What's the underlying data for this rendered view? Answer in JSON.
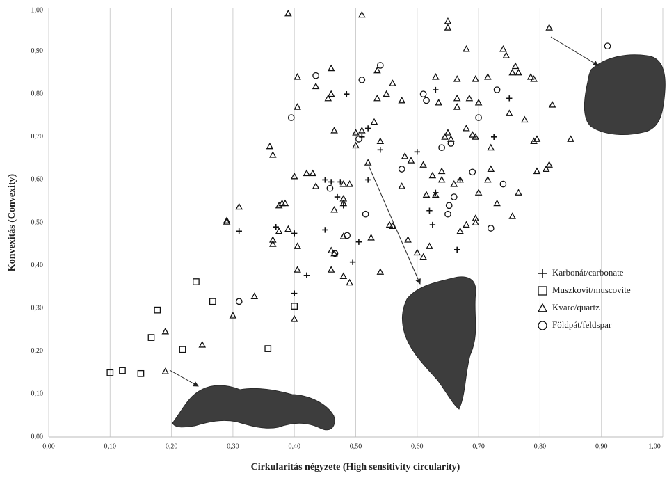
{
  "chart_data": {
    "type": "scatter",
    "xlabel": "Cirkularitás négyzete (High sensitivity circularity)",
    "ylabel": "Konvexitás (Convexity)",
    "xlim": [
      0,
      1
    ],
    "ylim": [
      0,
      1
    ],
    "xticks": [
      {
        "value": 0,
        "label": "0,00"
      },
      {
        "value": 0.1,
        "label": "0,10"
      },
      {
        "value": 0.2,
        "label": "0,20"
      },
      {
        "value": 0.3,
        "label": "0,30"
      },
      {
        "value": 0.4,
        "label": "0,40"
      },
      {
        "value": 0.5,
        "label": "0,50"
      },
      {
        "value": 0.6,
        "label": "0,60"
      },
      {
        "value": 0.7,
        "label": "0,70"
      },
      {
        "value": 0.8,
        "label": "0,80"
      },
      {
        "value": 0.9,
        "label": "0,90"
      },
      {
        "value": 1,
        "label": "1,00"
      }
    ],
    "yticks": [
      {
        "value": 0,
        "label": "0,00"
      },
      {
        "value": 0.1,
        "label": "0,10"
      },
      {
        "value": 0.2,
        "label": "0,20"
      },
      {
        "value": 0.3,
        "label": "0,30"
      },
      {
        "value": 0.4,
        "label": "0,40"
      },
      {
        "value": 0.5,
        "label": "0,50"
      },
      {
        "value": 0.6,
        "label": "0,60"
      },
      {
        "value": 0.7,
        "label": "0,70"
      },
      {
        "value": 0.8,
        "label": "0,80"
      },
      {
        "value": 0.9,
        "label": "0,90"
      },
      {
        "value": 1,
        "label": "1,00"
      }
    ],
    "grid": "x",
    "legend": "right",
    "series": [
      {
        "name": "Karbonát/carbonate",
        "color": "#111111",
        "marker": "plus",
        "x": [
          0.31,
          0.37,
          0.4,
          0.4,
          0.42,
          0.45,
          0.46,
          0.47,
          0.475,
          0.45,
          0.48,
          0.485,
          0.495,
          0.505,
          0.51,
          0.52,
          0.52,
          0.54,
          0.6,
          0.62,
          0.625,
          0.63,
          0.665,
          0.67,
          0.725,
          0.75,
          0.63
        ],
        "values": [
          0.48,
          0.49,
          0.335,
          0.475,
          0.377,
          0.6,
          0.595,
          0.56,
          0.595,
          0.483,
          0.54,
          0.8,
          0.408,
          0.455,
          0.7,
          0.72,
          0.6,
          0.67,
          0.665,
          0.528,
          0.495,
          0.81,
          0.437,
          0.6,
          0.7,
          0.79,
          0.57
        ]
      },
      {
        "name": "Muszkovit/muscovite",
        "color": "#111111",
        "marker": "square",
        "x": [
          0.1,
          0.12,
          0.15,
          0.167,
          0.177,
          0.218,
          0.24,
          0.267,
          0.357,
          0.4
        ],
        "values": [
          0.15,
          0.155,
          0.148,
          0.232,
          0.296,
          0.204,
          0.362,
          0.316,
          0.206,
          0.305
        ]
      },
      {
        "name": "Kvarc/quartz",
        "color": "#111111",
        "marker": "triangle",
        "x": [
          0.19,
          0.19,
          0.25,
          0.3,
          0.29,
          0.29,
          0.31,
          0.335,
          0.36,
          0.365,
          0.365,
          0.365,
          0.375,
          0.375,
          0.38,
          0.385,
          0.39,
          0.39,
          0.4,
          0.405,
          0.405,
          0.405,
          0.4,
          0.405,
          0.42,
          0.43,
          0.435,
          0.435,
          0.465,
          0.455,
          0.46,
          0.46,
          0.46,
          0.465,
          0.46,
          0.465,
          0.48,
          0.48,
          0.48,
          0.48,
          0.48,
          0.49,
          0.49,
          0.5,
          0.5,
          0.51,
          0.51,
          0.52,
          0.525,
          0.53,
          0.535,
          0.535,
          0.54,
          0.54,
          0.55,
          0.555,
          0.56,
          0.56,
          0.575,
          0.575,
          0.58,
          0.585,
          0.59,
          0.6,
          0.61,
          0.61,
          0.615,
          0.62,
          0.625,
          0.63,
          0.63,
          0.635,
          0.64,
          0.64,
          0.645,
          0.65,
          0.65,
          0.65,
          0.655,
          0.66,
          0.665,
          0.665,
          0.665,
          0.67,
          0.67,
          0.68,
          0.68,
          0.68,
          0.685,
          0.69,
          0.695,
          0.695,
          0.695,
          0.695,
          0.7,
          0.7,
          0.715,
          0.72,
          0.715,
          0.72,
          0.73,
          0.74,
          0.745,
          0.75,
          0.755,
          0.755,
          0.76,
          0.765,
          0.765,
          0.775,
          0.785,
          0.79,
          0.79,
          0.795,
          0.795,
          0.81,
          0.815,
          0.815,
          0.82,
          0.85
        ],
        "values": [
          0.153,
          0.246,
          0.215,
          0.283,
          0.505,
          0.502,
          0.537,
          0.328,
          0.678,
          0.658,
          0.46,
          0.45,
          0.48,
          0.54,
          0.545,
          0.545,
          0.485,
          0.988,
          0.608,
          0.84,
          0.77,
          0.39,
          0.275,
          0.445,
          0.615,
          0.615,
          0.585,
          0.818,
          0.715,
          0.79,
          0.86,
          0.8,
          0.435,
          0.428,
          0.39,
          0.53,
          0.59,
          0.545,
          0.556,
          0.375,
          0.468,
          0.36,
          0.59,
          0.68,
          0.71,
          0.715,
          0.985,
          0.64,
          0.465,
          0.735,
          0.855,
          0.79,
          0.385,
          0.69,
          0.8,
          0.495,
          0.492,
          0.825,
          0.585,
          0.785,
          0.655,
          0.46,
          0.645,
          0.43,
          0.42,
          0.635,
          0.565,
          0.445,
          0.61,
          0.84,
          0.565,
          0.78,
          0.62,
          0.6,
          0.7,
          0.71,
          0.97,
          0.955,
          0.695,
          0.59,
          0.835,
          0.77,
          0.79,
          0.48,
          0.6,
          0.495,
          0.72,
          0.905,
          0.79,
          0.705,
          0.835,
          0.51,
          0.5,
          0.7,
          0.57,
          0.78,
          0.6,
          0.625,
          0.84,
          0.675,
          0.545,
          0.905,
          0.89,
          0.755,
          0.515,
          0.85,
          0.865,
          0.85,
          0.57,
          0.74,
          0.84,
          0.835,
          0.69,
          0.62,
          0.695,
          0.625,
          0.635,
          0.955,
          0.775,
          0.695
        ]
      },
      {
        "name": "Földpát/feldspar",
        "color": "#111111",
        "marker": "circle",
        "x": [
          0.31,
          0.395,
          0.435,
          0.458,
          0.466,
          0.486,
          0.51,
          0.516,
          0.54,
          0.505,
          0.575,
          0.61,
          0.615,
          0.64,
          0.652,
          0.655,
          0.66,
          0.7,
          0.69,
          0.72,
          0.73,
          0.74,
          0.91,
          0.65
        ],
        "values": [
          0.316,
          0.745,
          0.843,
          0.58,
          0.428,
          0.47,
          0.833,
          0.52,
          0.867,
          0.695,
          0.625,
          0.8,
          0.785,
          0.675,
          0.54,
          0.685,
          0.56,
          0.745,
          0.618,
          0.487,
          0.81,
          0.59,
          0.912,
          0.52
        ]
      }
    ]
  }
}
